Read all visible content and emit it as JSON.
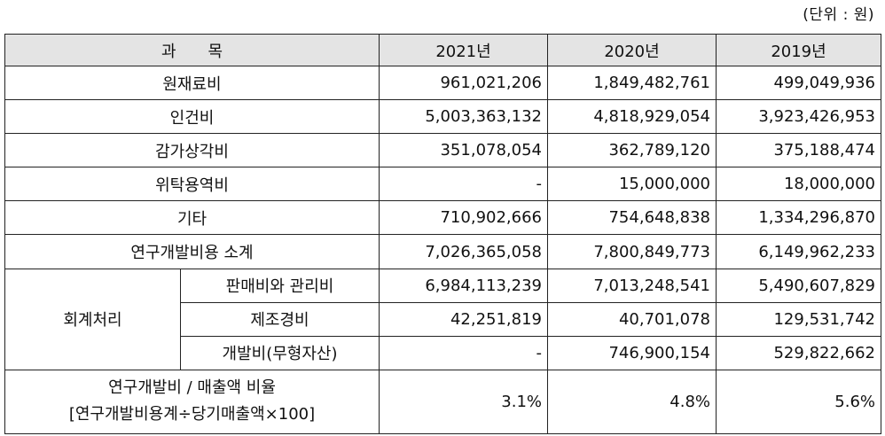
{
  "unit_note": "(단위 : 원)",
  "header": {
    "item": "과　　목",
    "years": [
      "2021년",
      "2020년",
      "2019년"
    ]
  },
  "rows": [
    {
      "label": "원재료비",
      "values": [
        "961,021,206",
        "1,849,482,761",
        "499,049,936"
      ]
    },
    {
      "label": "인건비",
      "values": [
        "5,003,363,132",
        "4,818,929,054",
        "3,923,426,953"
      ]
    },
    {
      "label": "감가상각비",
      "values": [
        "351,078,054",
        "362,789,120",
        "375,188,474"
      ]
    },
    {
      "label": "위탁용역비",
      "values": [
        "-",
        "15,000,000",
        "18,000,000"
      ]
    },
    {
      "label": "기타",
      "values": [
        "710,902,666",
        "754,648,838",
        "1,334,296,870"
      ]
    },
    {
      "label": "연구개발비용 소계",
      "values": [
        "7,026,365,058",
        "7,800,849,773",
        "6,149,962,233"
      ]
    }
  ],
  "accounting": {
    "label": "회계처리",
    "rows": [
      {
        "label": "판매비와 관리비",
        "values": [
          "6,984,113,239",
          "7,013,248,541",
          "5,490,607,829"
        ]
      },
      {
        "label": "제조경비",
        "values": [
          "42,251,819",
          "40,701,078",
          "129,531,742"
        ]
      },
      {
        "label": "개발비(무형자산)",
        "values": [
          "-",
          "746,900,154",
          "529,822,662"
        ]
      }
    ]
  },
  "ratio": {
    "label_line1": "연구개발비 / 매출액 비율",
    "label_line2": "[연구개발비용계÷당기매출액×100]",
    "values": [
      "3.1%",
      "4.8%",
      "5.6%"
    ]
  }
}
